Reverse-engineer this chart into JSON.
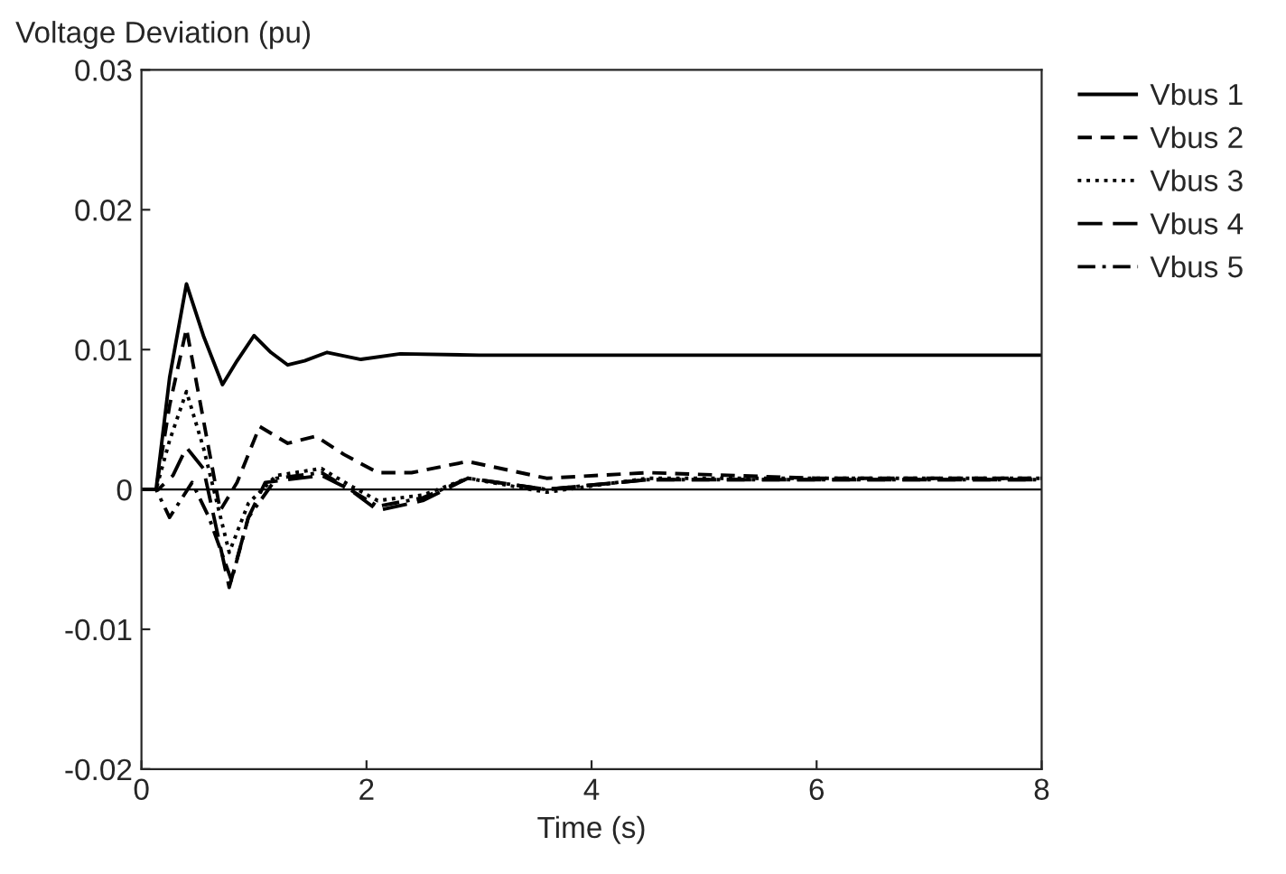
{
  "chart_data": {
    "type": "line",
    "title": "Voltage Deviation (pu)",
    "xlabel": "Time (s)",
    "xlim": [
      0,
      8
    ],
    "xticks": [
      0,
      2,
      4,
      6,
      8
    ],
    "ylim": [
      -0.02,
      0.03
    ],
    "yticks": [
      -0.02,
      -0.01,
      0,
      0.01,
      0.02,
      0.03
    ],
    "grid": false,
    "legend": "right",
    "ref_lines": [
      {
        "axis": "y",
        "value": 0,
        "color": "#000000"
      }
    ],
    "series": [
      {
        "name": "Vbus 1",
        "color": "#000000",
        "line_style": "solid",
        "x": [
          0,
          0.13,
          0.25,
          0.4,
          0.55,
          0.72,
          0.85,
          1.0,
          1.15,
          1.3,
          1.45,
          1.65,
          1.95,
          2.3,
          3,
          4,
          5,
          6,
          7,
          8
        ],
        "values": [
          0,
          0,
          0.008,
          0.0147,
          0.011,
          0.0075,
          0.0092,
          0.011,
          0.0098,
          0.0089,
          0.0092,
          0.0098,
          0.0093,
          0.0097,
          0.0096,
          0.0096,
          0.0096,
          0.0096,
          0.0096,
          0.0096
        ]
      },
      {
        "name": "Vbus 2",
        "color": "#000000",
        "line_style": "dashed",
        "x": [
          0,
          0.13,
          0.25,
          0.4,
          0.55,
          0.7,
          0.85,
          1.05,
          1.3,
          1.55,
          1.8,
          2.1,
          2.4,
          2.9,
          3.6,
          4.5,
          6,
          8
        ],
        "values": [
          0,
          0,
          0.006,
          0.0115,
          0.005,
          -0.0015,
          0.0005,
          0.0045,
          0.0033,
          0.0038,
          0.0025,
          0.0012,
          0.0012,
          0.002,
          0.0008,
          0.0012,
          0.0008,
          0.0008
        ]
      },
      {
        "name": "Vbus 3",
        "color": "#000000",
        "line_style": "dotted",
        "x": [
          0,
          0.13,
          0.25,
          0.4,
          0.55,
          0.78,
          0.95,
          1.2,
          1.6,
          1.85,
          2.1,
          2.5,
          2.9,
          3.6,
          4.5,
          6,
          8
        ],
        "values": [
          0,
          0,
          0.0035,
          0.007,
          0.003,
          -0.0045,
          -0.001,
          0.001,
          0.0015,
          0.0003,
          -0.0008,
          -0.0004,
          0.0008,
          -0.0002,
          0.0008,
          0.0008,
          0.0008
        ]
      },
      {
        "name": "Vbus 4",
        "color": "#000000",
        "line_style": "dashed",
        "x": [
          0,
          0.15,
          0.28,
          0.4,
          0.55,
          0.78,
          0.95,
          1.1,
          1.6,
          1.85,
          2.1,
          2.5,
          2.9,
          3.6,
          4.5,
          6,
          8
        ],
        "values": [
          0,
          0,
          0.001,
          0.003,
          0.0015,
          -0.007,
          -0.002,
          0.0005,
          0.001,
          0,
          -0.0015,
          -0.0008,
          0.0008,
          0,
          0.0007,
          0.0007,
          0.0007
        ]
      },
      {
        "name": "Vbus 5",
        "color": "#000000",
        "line_style": "dashdot",
        "x": [
          0,
          0.13,
          0.25,
          0.45,
          0.6,
          0.8,
          0.95,
          1.2,
          1.6,
          1.85,
          2.1,
          2.5,
          2.9,
          3.6,
          4.5,
          6,
          8
        ],
        "values": [
          0,
          0,
          -0.002,
          0.0005,
          -0.002,
          -0.0065,
          -0.002,
          0.0008,
          0.0012,
          0,
          -0.0012,
          -0.0006,
          0.0008,
          0,
          0.0007,
          0.0007,
          0.0007
        ]
      }
    ]
  }
}
